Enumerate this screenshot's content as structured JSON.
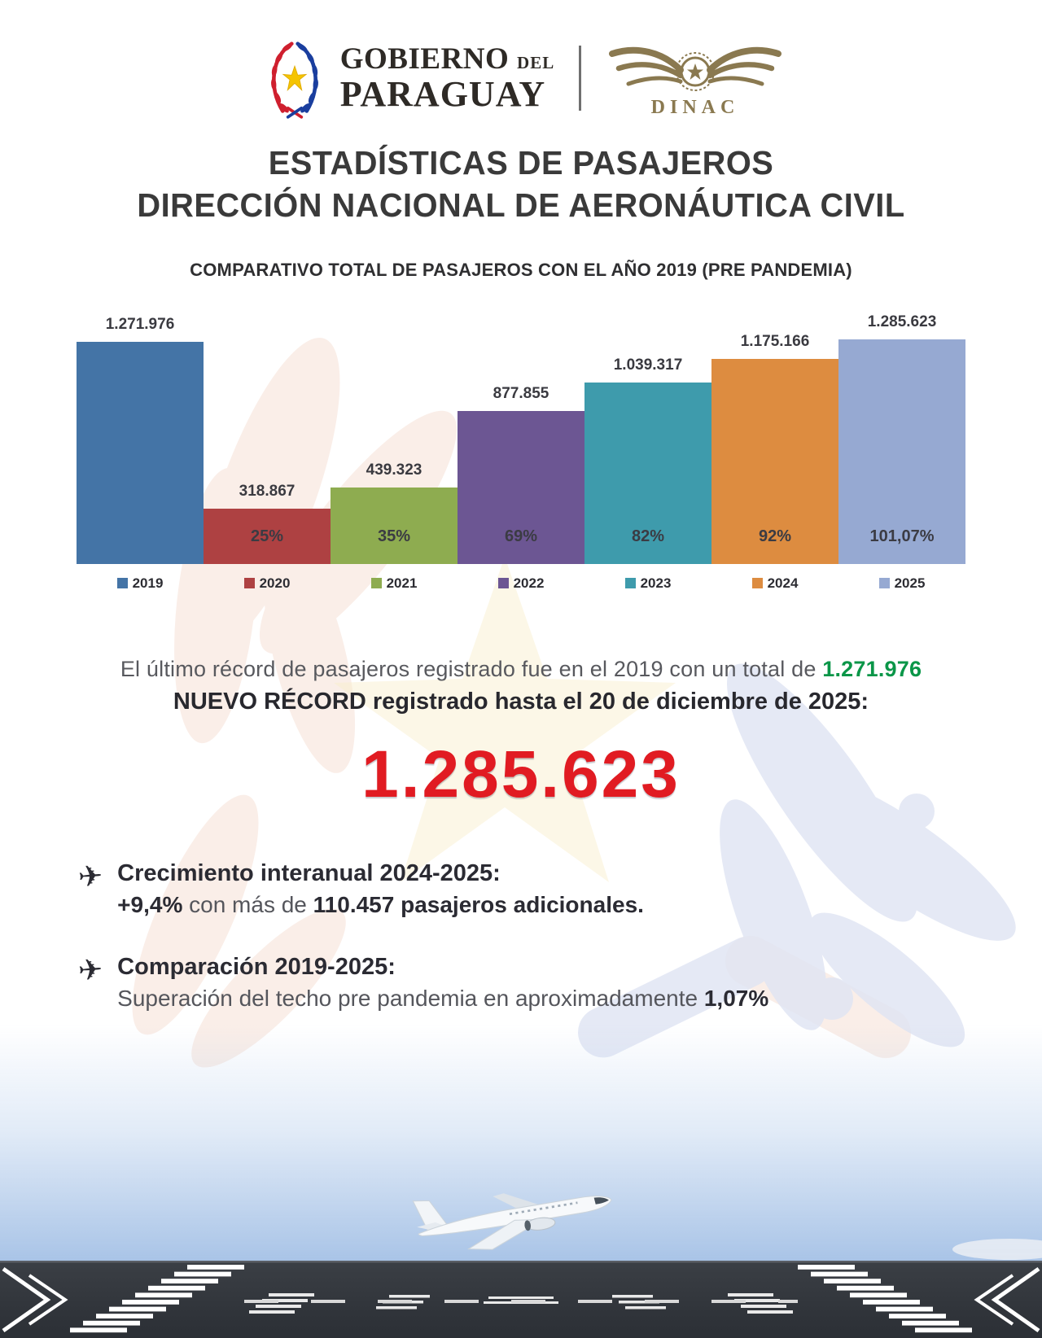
{
  "header": {
    "gov": {
      "line1": "GOBIERNO",
      "line1_suffix": "DEL",
      "line2": "PARAGUAY"
    },
    "dinac_label": "DINAC"
  },
  "title": {
    "line1": "ESTADÍSTICAS DE PASAJEROS",
    "line2": "DIRECCIÓN NACIONAL DE AERONÁUTICA CIVIL"
  },
  "chart_data": {
    "type": "bar",
    "title": "COMPARATIVO TOTAL DE PASAJEROS CON EL AÑO 2019 (PRE PANDEMIA)",
    "categories": [
      "2019",
      "2020",
      "2021",
      "2022",
      "2023",
      "2024",
      "2025"
    ],
    "values": [
      1271976,
      318867,
      439323,
      877855,
      1039317,
      1175166,
      1285623
    ],
    "value_labels": [
      "1.271.976",
      "318.867",
      "439.323",
      "877.855",
      "1.039.317",
      "1.175.166",
      "1.285.623"
    ],
    "percent_labels": [
      "",
      "25%",
      "35%",
      "69%",
      "82%",
      "92%",
      "101,07%"
    ],
    "colors": [
      "#4474A6",
      "#AE4142",
      "#8EAC50",
      "#6C5693",
      "#3E9BAC",
      "#DD8C40",
      "#96A9D2"
    ],
    "xlabel": "",
    "ylabel": "",
    "ylim": [
      0,
      1285623
    ],
    "grid": false,
    "legend_position": "bottom"
  },
  "record": {
    "line1_prefix": "El último récord de pasajeros registrado fue en el 2019 con un total de ",
    "line1_value": "1.271.976",
    "line2": "NUEVO RÉCORD registrado hasta el 20 de diciembre de 2025:",
    "big_number": "1.285.623"
  },
  "bullets": [
    {
      "title": "Crecimiento interanual 2024-2025:",
      "body_bold1": "+9,4%",
      "body_regular": " con más de ",
      "body_bold2": "110.457 pasajeros adicionales."
    },
    {
      "title": "Comparación 2019-2025:",
      "body_regular": "Superación del techo pre pandemia en aproximadamente ",
      "body_bold": "1,07%"
    }
  ],
  "theme_colors": {
    "record_green": "#0a9648",
    "record_red": "#e11b22",
    "title_text": "#3a3a3a",
    "body_gray": "#55565c",
    "dinac_gold": "#8a7950",
    "wreath_red": "#cf1f2e",
    "wreath_blue": "#1a3e9e",
    "star_yellow": "#f5c400",
    "runway_dark": "#32363b",
    "sky_blue": "#a9c4e7"
  }
}
